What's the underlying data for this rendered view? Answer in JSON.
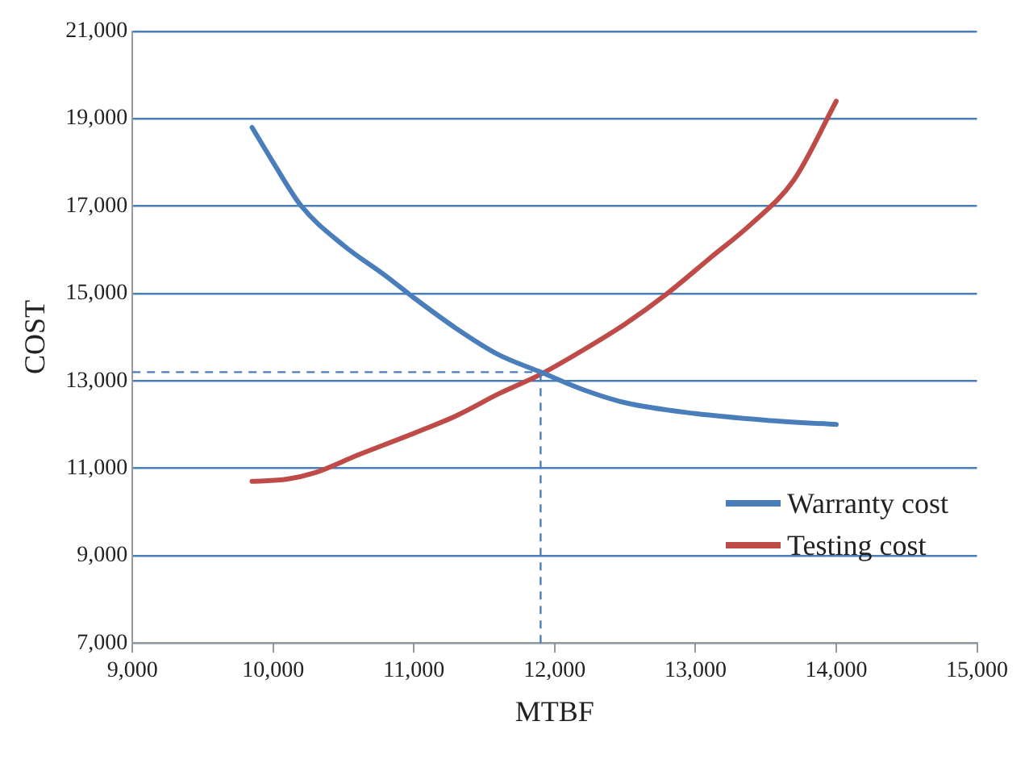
{
  "chart_data": {
    "type": "line",
    "xlabel": "MTBF",
    "ylabel": "COST",
    "xlim": [
      9000,
      15000
    ],
    "xticks": [
      {
        "value": 9000,
        "label": "9,000"
      },
      {
        "value": 10000,
        "label": "10,000"
      },
      {
        "value": 11000,
        "label": "11,000"
      },
      {
        "value": 12000,
        "label": "12,000"
      },
      {
        "value": 13000,
        "label": "13,000"
      },
      {
        "value": 14000,
        "label": "14,000"
      },
      {
        "value": 15000,
        "label": "15,000"
      }
    ],
    "ylim": [
      7000,
      21000
    ],
    "yticks": [
      {
        "value": 7000,
        "label": "7,000"
      },
      {
        "value": 9000,
        "label": "9,000"
      },
      {
        "value": 11000,
        "label": "11,000"
      },
      {
        "value": 13000,
        "label": "13,000"
      },
      {
        "value": 15000,
        "label": "15,000"
      },
      {
        "value": 17000,
        "label": "17,000"
      },
      {
        "value": 19000,
        "label": "19,000"
      },
      {
        "value": 21000,
        "label": "21,000"
      }
    ],
    "grid": "y",
    "legend": "bottom right",
    "marker": "none",
    "line_style": "solid",
    "series": [
      {
        "name": "Warranty cost",
        "color": "#4a7ebb",
        "x": [
          9850,
          10000,
          10200,
          10500,
          10800,
          11000,
          11300,
          11600,
          11900,
          12200,
          12500,
          13000,
          13500,
          14000
        ],
        "values": [
          18800,
          18000,
          17000,
          16100,
          15400,
          14900,
          14200,
          13600,
          13200,
          12800,
          12500,
          12250,
          12100,
          12000
        ]
      },
      {
        "name": "Testing cost",
        "color": "#be4b48",
        "x": [
          9850,
          10100,
          10300,
          10600,
          11000,
          11300,
          11600,
          11900,
          12200,
          12500,
          12800,
          13100,
          13400,
          13700,
          14000
        ],
        "values": [
          10700,
          10750,
          10900,
          11300,
          11800,
          12200,
          12700,
          13150,
          13700,
          14300,
          15000,
          15800,
          16600,
          17600,
          19400
        ]
      }
    ],
    "ref_lines": [
      {
        "axis": "x",
        "value": 11900,
        "color": "#4a7ebb",
        "line_style": "dashed"
      },
      {
        "axis": "y",
        "value": 13200,
        "color": "#4a7ebb",
        "line_style": "dashed"
      }
    ]
  }
}
